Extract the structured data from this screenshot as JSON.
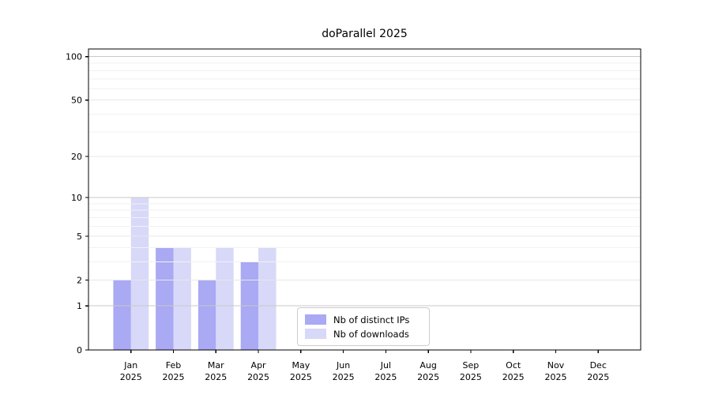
{
  "chart_data": {
    "type": "bar",
    "title": "doParallel 2025",
    "categories": [
      "Jan",
      "Feb",
      "Mar",
      "Apr",
      "May",
      "Jun",
      "Jul",
      "Aug",
      "Sep",
      "Oct",
      "Nov",
      "Dec"
    ],
    "x_tick_year": "2025",
    "series": [
      {
        "name": "Nb of distinct IPs",
        "color": "#a9a9f4",
        "values": [
          2,
          4,
          2,
          3,
          0,
          0,
          0,
          0,
          0,
          0,
          0,
          0
        ]
      },
      {
        "name": "Nb of downloads",
        "color": "#d8d8f9",
        "values": [
          10,
          4,
          4,
          4,
          0,
          0,
          0,
          0,
          0,
          0,
          0,
          0
        ]
      }
    ],
    "yscale": "log1p",
    "ylim": [
      0,
      113
    ],
    "y_ticks": [
      0,
      1,
      2,
      5,
      10,
      20,
      50,
      100
    ],
    "y_minor_gridlines": [
      3,
      4,
      6,
      7,
      8,
      9,
      30,
      40,
      60,
      70,
      80,
      90
    ],
    "grid": "on",
    "grid_above_bars": true,
    "legend_position": "inside-lower-center",
    "colors": {
      "decade_gridline": "#c9c9c9",
      "major_gridline": "#e7e7e7",
      "minor_gridline": "#f1f1f1",
      "axis": "#000000",
      "tick_label": "#000000",
      "legend_border": "#cccccc",
      "background": "#ffffff"
    }
  }
}
